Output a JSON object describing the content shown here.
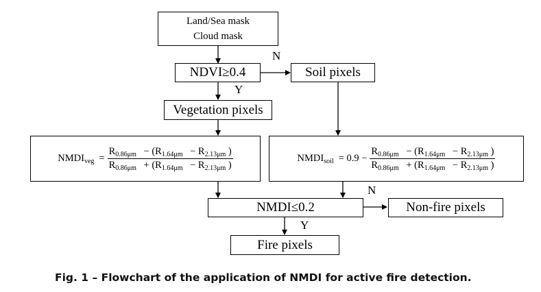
{
  "boxes": {
    "mask_line1": "Land/Sea mask",
    "mask_line2": "Cloud mask",
    "ndvi": "NDVI≥0.4",
    "soil": "Soil pixels",
    "vegetation": "Vegetation pixels",
    "nmdi_threshold": "NMDI≤0.2",
    "nonfire": "Non-fire pixels",
    "fire": "Fire pixels"
  },
  "formula_veg": {
    "lhs": "NMDI",
    "lhs_sub": "veg",
    "eq": "=",
    "num_a": "R",
    "num_a_sub": "0.86μm",
    "num_op": "−",
    "num_b": "(R",
    "num_b_sub": "1.64μm",
    "num_op2": "− R",
    "num_c_sub": "2.13μm",
    "num_close": ")",
    "den_a": "R",
    "den_a_sub": "0.86μm",
    "den_op": "+",
    "den_b": "(R",
    "den_b_sub": "1.64μm",
    "den_op2": "− R",
    "den_c_sub": "2.13μm",
    "den_close": ")"
  },
  "formula_soil": {
    "lhs": "NMDI",
    "lhs_sub": "soil",
    "eq": "= 0.9 −",
    "num_a": "R",
    "num_a_sub": "0.86μm",
    "num_op": "−",
    "num_b": "(R",
    "num_b_sub": "1.64μm",
    "num_op2": "− R",
    "num_c_sub": "2.13μm",
    "num_close": ")",
    "den_a": "R",
    "den_a_sub": "0.86μm",
    "den_op": "+",
    "den_b": "(R",
    "den_b_sub": "1.64μm",
    "den_op2": "− R",
    "den_c_sub": "2.13μm",
    "den_close": ")"
  },
  "edge_labels": {
    "ndvi_no": "N",
    "ndvi_yes": "Y",
    "nmdi_no": "N",
    "nmdi_yes": "Y"
  },
  "caption": "Fig. 1 – Flowchart of the application of NMDI for active fire detection."
}
